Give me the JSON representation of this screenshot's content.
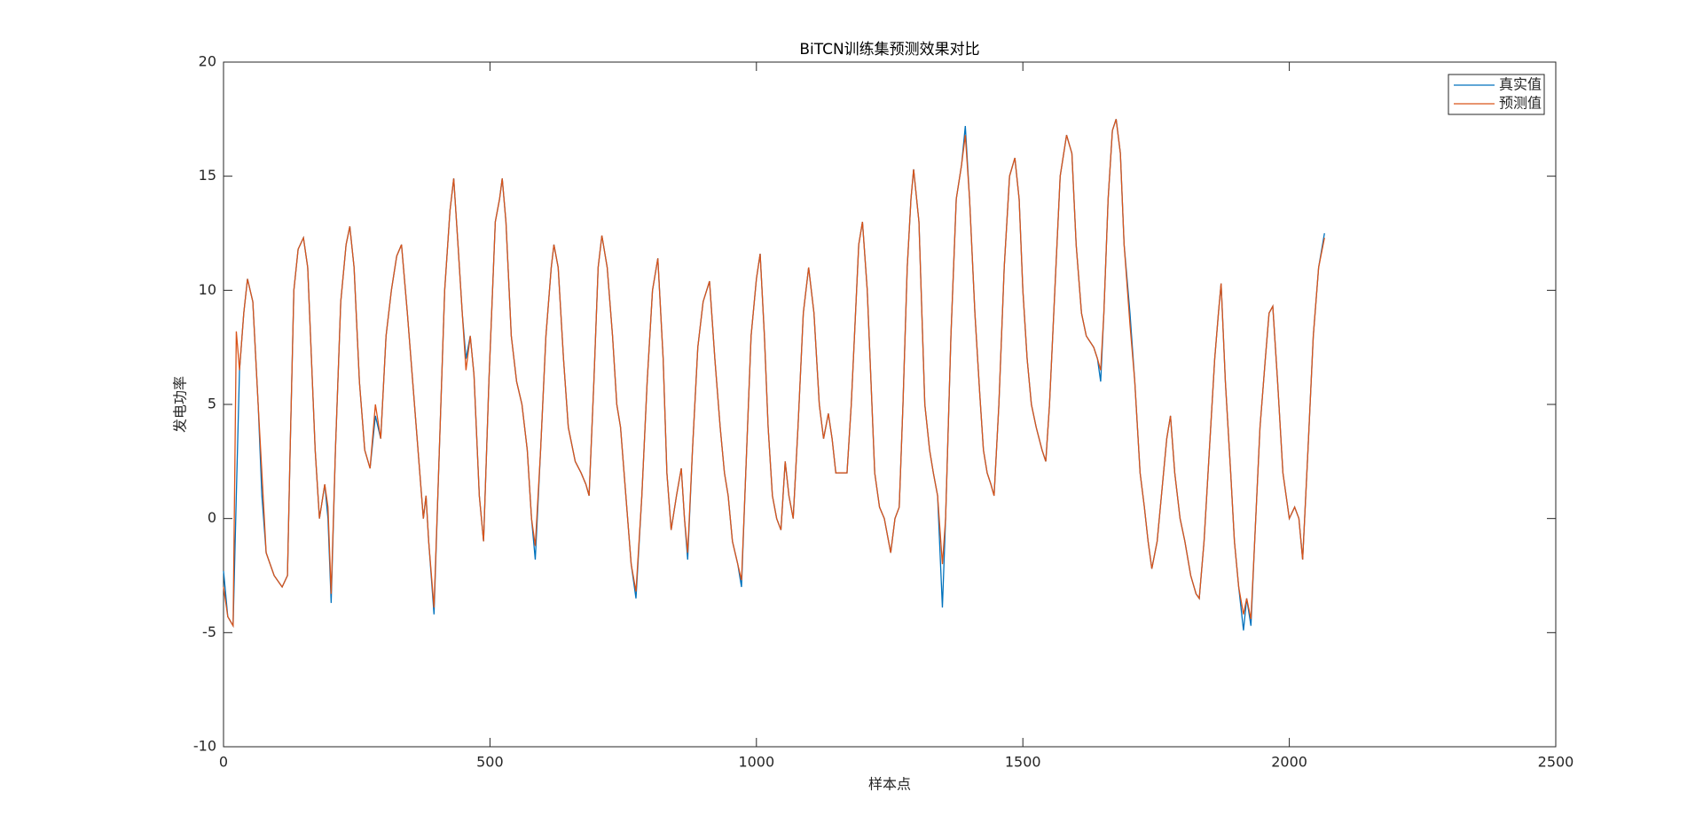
{
  "chart_data": {
    "type": "line",
    "title": "BiTCN训练集预测效果对比",
    "xlabel": "样本点",
    "ylabel": "发电功率",
    "xlim": [
      0,
      2500
    ],
    "xticks": [
      0,
      500,
      1000,
      1500,
      2000,
      2500
    ],
    "ylim": [
      -10,
      20
    ],
    "yticks": [
      -10,
      -5,
      0,
      5,
      10,
      15,
      20
    ],
    "legend": "upper right",
    "x": [
      0,
      8,
      18,
      24,
      30,
      38,
      45,
      55,
      65,
      72,
      80,
      95,
      110,
      120,
      125,
      132,
      140,
      150,
      158,
      165,
      172,
      180,
      190,
      196,
      202,
      210,
      220,
      230,
      237,
      245,
      255,
      265,
      275,
      285,
      295,
      305,
      315,
      325,
      334,
      345,
      355,
      365,
      375,
      380,
      385,
      395,
      405,
      415,
      425,
      432,
      440,
      448,
      455,
      463,
      470,
      480,
      488,
      498,
      510,
      518,
      523,
      530,
      540,
      550,
      560,
      570,
      578,
      585,
      595,
      605,
      615,
      620,
      628,
      638,
      647,
      660,
      671,
      680,
      686,
      695,
      703,
      710,
      720,
      730,
      738,
      745,
      755,
      765,
      774,
      785,
      795,
      805,
      815,
      825,
      832,
      840,
      850,
      859,
      865,
      871,
      880,
      890,
      900,
      912,
      922,
      932,
      940,
      947,
      955,
      965,
      972,
      980,
      990,
      1000,
      1007,
      1015,
      1022,
      1030,
      1038,
      1046,
      1054,
      1061,
      1069,
      1078,
      1088,
      1098,
      1108,
      1118,
      1126,
      1135,
      1142,
      1149,
      1160,
      1170,
      1178,
      1186,
      1192,
      1199,
      1208,
      1215,
      1222,
      1231,
      1240,
      1252,
      1260,
      1268,
      1275,
      1283,
      1290,
      1295,
      1305,
      1316,
      1325,
      1332,
      1340,
      1349,
      1355,
      1365,
      1375,
      1385,
      1392,
      1400,
      1410,
      1419,
      1426,
      1433,
      1440,
      1446,
      1455,
      1465,
      1475,
      1485,
      1493,
      1500,
      1508,
      1516,
      1525,
      1536,
      1543,
      1550,
      1560,
      1570,
      1582,
      1592,
      1600,
      1610,
      1619,
      1633,
      1640,
      1646,
      1652,
      1660,
      1668,
      1675,
      1683,
      1690,
      1701,
      1710,
      1720,
      1728,
      1735,
      1742,
      1752,
      1760,
      1770,
      1777,
      1785,
      1795,
      1804,
      1815,
      1825,
      1831,
      1840,
      1850,
      1860,
      1867,
      1872,
      1880,
      1890,
      1897,
      1905,
      1914,
      1920,
      1928,
      1935,
      1945,
      1955,
      1962,
      1969,
      1978,
      1988,
      2000,
      2010,
      2018,
      2025,
      2035,
      2045,
      2055,
      2066
    ],
    "series": [
      {
        "name": "真实值",
        "color": "#0072BD",
        "values": [
          -2.3,
          -4.3,
          -4.7,
          1,
          6.5,
          9,
          10.5,
          9.5,
          5,
          1,
          -1.5,
          -2.5,
          -3,
          -2.5,
          3,
          10,
          11.8,
          12.3,
          11,
          7,
          3,
          0,
          1.5,
          0,
          -3.7,
          3,
          9.5,
          12,
          12.8,
          11,
          6,
          3,
          2.2,
          4.5,
          3.5,
          8,
          10,
          11.5,
          12,
          9,
          6,
          3,
          0,
          1,
          -1,
          -4.2,
          3,
          10,
          13.5,
          14.9,
          12,
          9,
          7,
          8,
          6.3,
          1,
          -1,
          6,
          13,
          14,
          14.9,
          13,
          8,
          6,
          5,
          3,
          0,
          -1.8,
          3,
          8,
          11,
          12,
          11,
          7,
          4,
          2.5,
          2,
          1.5,
          1,
          6,
          11,
          12.4,
          11,
          8,
          5,
          4,
          1,
          -2,
          -3.5,
          1,
          6,
          10,
          11.4,
          7,
          2,
          -0.5,
          1,
          2.2,
          0,
          -1.8,
          3,
          7.5,
          9.5,
          10.4,
          7,
          4,
          2,
          1,
          -1,
          -2,
          -3,
          2,
          8,
          10.5,
          11.6,
          8,
          4,
          1,
          0,
          -0.5,
          2.5,
          1,
          0,
          4,
          9,
          11,
          9,
          5,
          3.5,
          4.6,
          3.5,
          2,
          2,
          2,
          5,
          9,
          12,
          13,
          10,
          6,
          2,
          0.5,
          0,
          -1.5,
          0,
          0.5,
          5,
          11,
          14,
          15.3,
          13,
          5,
          3,
          2,
          1,
          -3.9,
          0,
          8,
          14,
          15.5,
          17.2,
          14,
          9,
          5.5,
          3,
          2,
          1.5,
          1,
          5,
          11,
          15,
          15.8,
          14,
          10,
          7,
          5,
          4,
          3,
          2.5,
          5,
          10,
          15,
          16.8,
          16,
          12,
          9,
          8,
          7.5,
          7,
          6,
          9,
          14,
          17,
          17.5,
          16,
          12,
          9,
          6,
          2,
          0.5,
          -1,
          -2.2,
          -1,
          1,
          3.5,
          4.5,
          2,
          0,
          -1,
          -2.5,
          -3.3,
          -3.5,
          -1,
          3,
          7,
          9,
          10.3,
          6,
          2,
          -1,
          -3,
          -4.9,
          -3.5,
          -4.7,
          -1,
          4,
          7,
          9,
          9.3,
          6,
          2,
          0,
          0.5,
          0,
          -1.8,
          3,
          8,
          11,
          12.5
        ]
      },
      {
        "name": "预测值",
        "color": "#D95319",
        "values": [
          -3,
          -4.3,
          -4.7,
          8.2,
          6.5,
          9,
          10.5,
          9.5,
          5,
          2,
          -1.5,
          -2.5,
          -3,
          -2.5,
          3,
          10,
          11.8,
          12.3,
          11,
          7,
          3,
          0,
          1.5,
          0.5,
          -3.3,
          3,
          9.5,
          12,
          12.8,
          11,
          6,
          3,
          2.2,
          5,
          3.5,
          8,
          10,
          11.5,
          12,
          9,
          6,
          3,
          0,
          1,
          -1,
          -3.9,
          3,
          10,
          13.5,
          14.9,
          12,
          9,
          6.5,
          8,
          6.3,
          1,
          -1,
          6,
          13,
          14,
          14.9,
          13,
          8,
          6,
          5,
          3,
          0,
          -1.2,
          3,
          8,
          11,
          12,
          11,
          7,
          4,
          2.5,
          2,
          1.5,
          1,
          6,
          11,
          12.4,
          11,
          8,
          5,
          4,
          1,
          -2,
          -3.2,
          1,
          6,
          10,
          11.4,
          7,
          2,
          -0.5,
          1,
          2.2,
          0,
          -1.5,
          3,
          7.5,
          9.5,
          10.4,
          7,
          4,
          2,
          1,
          -1,
          -2,
          -2.7,
          2,
          8,
          10.5,
          11.6,
          8,
          4,
          1,
          0,
          -0.5,
          2.5,
          1,
          0,
          4,
          9,
          11,
          9,
          5,
          3.5,
          4.6,
          3.5,
          2,
          2,
          2,
          5,
          9,
          12,
          13,
          10,
          6,
          2,
          0.5,
          0,
          -1.5,
          0,
          0.5,
          5,
          11,
          14,
          15.3,
          13,
          5,
          3,
          2,
          1,
          -2,
          0,
          8,
          14,
          15.5,
          16.8,
          14,
          9,
          5.5,
          3,
          2,
          1.5,
          1,
          5,
          11,
          15,
          15.8,
          14,
          10,
          7,
          5,
          4,
          3,
          2.5,
          5,
          10,
          15,
          16.8,
          16,
          12,
          9,
          8,
          7.5,
          7,
          6.5,
          9,
          14,
          17,
          17.5,
          16,
          12,
          8.5,
          6,
          2,
          0.5,
          -1,
          -2.2,
          -1,
          1,
          3.5,
          4.5,
          2,
          0,
          -1,
          -2.5,
          -3.3,
          -3.5,
          -1,
          3,
          7,
          9,
          10.3,
          6,
          2,
          -1,
          -3,
          -4.2,
          -3.5,
          -4.4,
          -1,
          4,
          7,
          9,
          9.3,
          6,
          2,
          0,
          0.5,
          0,
          -1.8,
          3,
          8,
          11,
          12.3
        ]
      }
    ]
  }
}
